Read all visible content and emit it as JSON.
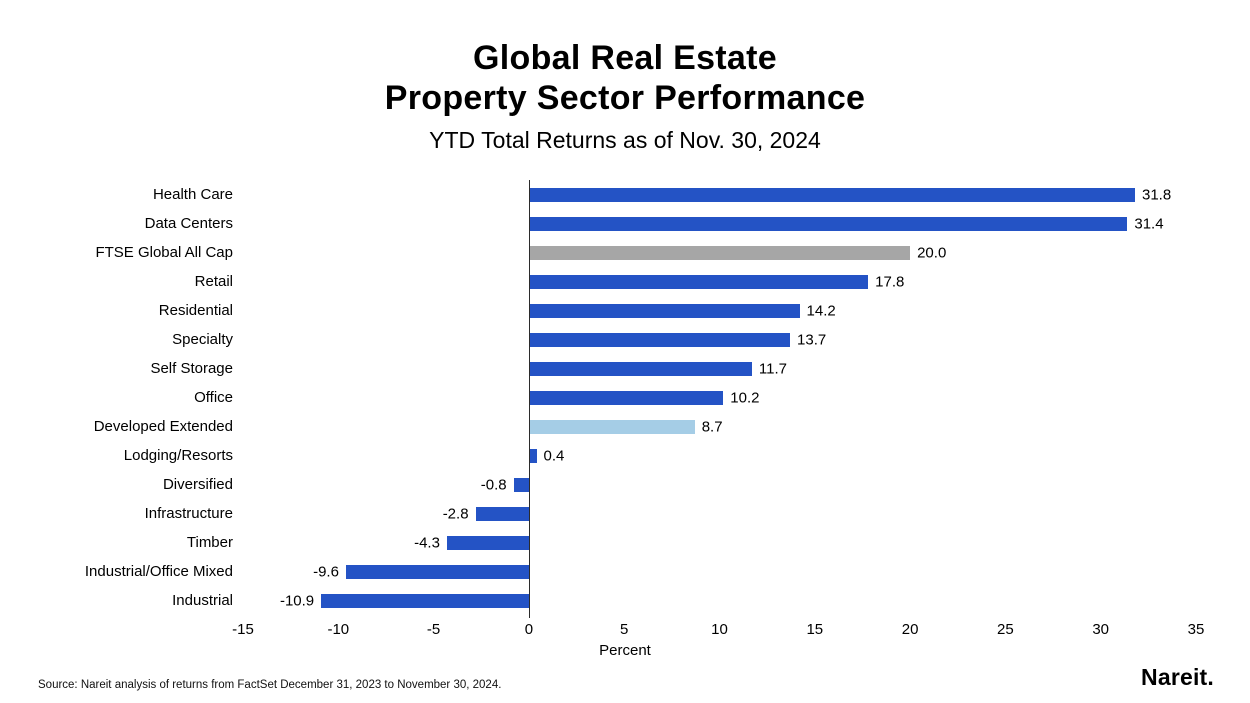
{
  "header": {
    "title_line1": "Global Real Estate",
    "title_line2": "Property Sector Performance",
    "subtitle": "YTD Total Returns as of Nov. 30, 2024"
  },
  "footer": {
    "source": "Source: Nareit analysis of returns from FactSet December 31, 2023 to November 30, 2024.",
    "logo": "Nareit."
  },
  "colors": {
    "bar_blue": "#2453c5",
    "bar_gray": "#a6a6a6",
    "bar_light_blue": "#a5cde6",
    "axis_line": "#2b2b2b"
  },
  "chart_data": {
    "type": "bar",
    "orientation": "horizontal",
    "title": "Global Real Estate Property Sector Performance",
    "subtitle": "YTD Total Returns as of Nov. 30, 2024",
    "xlabel": "Percent",
    "xlim": [
      -15,
      35
    ],
    "xticks": [
      -15,
      -10,
      -5,
      0,
      5,
      10,
      15,
      20,
      25,
      30,
      35
    ],
    "grid": false,
    "legend": "none",
    "categories": [
      "Health Care",
      "Data Centers",
      "FTSE Global All Cap",
      "Retail",
      "Residential",
      "Specialty",
      "Self Storage",
      "Office",
      "Developed Extended",
      "Lodging/Resorts",
      "Diversified",
      "Infrastructure",
      "Timber",
      "Industrial/Office Mixed",
      "Industrial"
    ],
    "values": [
      31.8,
      31.4,
      20.0,
      17.8,
      14.2,
      13.7,
      11.7,
      10.2,
      8.7,
      0.4,
      -0.8,
      -2.8,
      -4.3,
      -9.6,
      -10.9
    ],
    "bar_colors": [
      "#2453c5",
      "#2453c5",
      "#a6a6a6",
      "#2453c5",
      "#2453c5",
      "#2453c5",
      "#2453c5",
      "#2453c5",
      "#a5cde6",
      "#2453c5",
      "#2453c5",
      "#2453c5",
      "#2453c5",
      "#2453c5",
      "#2453c5"
    ]
  }
}
